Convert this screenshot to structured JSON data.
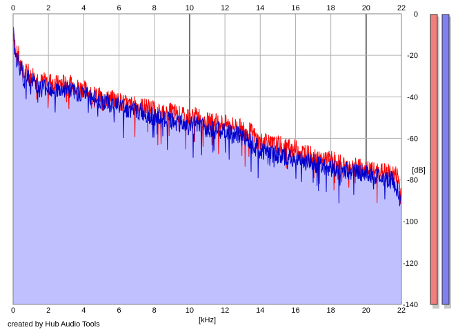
{
  "credit": "created by Hub Audio Tools",
  "chart_data": {
    "type": "area",
    "xlabel": "[kHz]",
    "ylabel": "[dB]",
    "xlim": [
      0,
      22
    ],
    "ylim": [
      -140,
      0
    ],
    "x_ticks": [
      0,
      2,
      4,
      6,
      8,
      10,
      12,
      14,
      16,
      18,
      20,
      22
    ],
    "y_ticks": [
      0,
      -20,
      -40,
      -60,
      -80,
      -100,
      -120,
      -140
    ],
    "grid": true,
    "colors": {
      "fill": "#c0c0ff",
      "red": "#ff0000",
      "blue": "#0000cc",
      "grid": "#b0b0b0",
      "meter_left": "#f08080",
      "meter_right": "#8080f0"
    },
    "series": [
      {
        "color": "red",
        "x": [
          0,
          0.1,
          0.2,
          0.3,
          0.4,
          0.5,
          0.6,
          0.8,
          1.0,
          1.2,
          1.5,
          2.0,
          2.5,
          3.0,
          3.5,
          4.0,
          4.5,
          5.0,
          5.5,
          6.0,
          6.5,
          7.0,
          7.5,
          8.0,
          8.5,
          9.0,
          9.5,
          10.0,
          10.5,
          11.0,
          11.5,
          12.0,
          12.5,
          13.0,
          13.5,
          14.0,
          14.3,
          14.6,
          15.0,
          15.5,
          16.0,
          16.5,
          17.0,
          17.5,
          18.0,
          18.5,
          19.0,
          19.5,
          20.0,
          20.5,
          21.0,
          21.5,
          21.8,
          22.0
        ],
        "y": [
          -10,
          -15,
          -20,
          -18,
          -27,
          -24,
          -30,
          -27,
          -31,
          -28,
          -33,
          -32,
          -34,
          -33,
          -35,
          -36,
          -39,
          -40,
          -41,
          -42,
          -44,
          -44,
          -45,
          -46,
          -48,
          -47,
          -49,
          -50,
          -49,
          -52,
          -52,
          -53,
          -54,
          -55,
          -57,
          -62,
          -60,
          -63,
          -63,
          -64,
          -65,
          -67,
          -68,
          -70,
          -70,
          -72,
          -73,
          -74,
          -75,
          -76,
          -76,
          -77,
          -78,
          -88
        ]
      },
      {
        "color": "blue",
        "x": [
          0,
          0.1,
          0.2,
          0.3,
          0.4,
          0.5,
          0.6,
          0.8,
          1.0,
          1.2,
          1.5,
          2.0,
          2.5,
          3.0,
          3.5,
          4.0,
          4.5,
          5.0,
          5.5,
          6.0,
          6.5,
          7.0,
          7.5,
          8.0,
          8.5,
          9.0,
          9.5,
          10.0,
          10.5,
          11.0,
          11.5,
          12.0,
          12.5,
          13.0,
          13.5,
          14.0,
          14.3,
          14.6,
          15.0,
          15.5,
          16.0,
          16.5,
          17.0,
          17.5,
          18.0,
          18.5,
          19.0,
          19.5,
          20.0,
          20.5,
          21.0,
          21.5,
          21.8,
          22.0
        ],
        "y": [
          -8,
          -18,
          -22,
          -20,
          -28,
          -26,
          -32,
          -30,
          -34,
          -32,
          -36,
          -35,
          -37,
          -36,
          -38,
          -38,
          -41,
          -42,
          -43,
          -44,
          -46,
          -47,
          -48,
          -50,
          -51,
          -52,
          -53,
          -53,
          -54,
          -55,
          -56,
          -57,
          -58,
          -59,
          -61,
          -66,
          -66,
          -67,
          -68,
          -69,
          -70,
          -71,
          -72,
          -73,
          -74,
          -75,
          -76,
          -76,
          -77,
          -78,
          -79,
          -80,
          -85,
          -92
        ]
      }
    ]
  }
}
